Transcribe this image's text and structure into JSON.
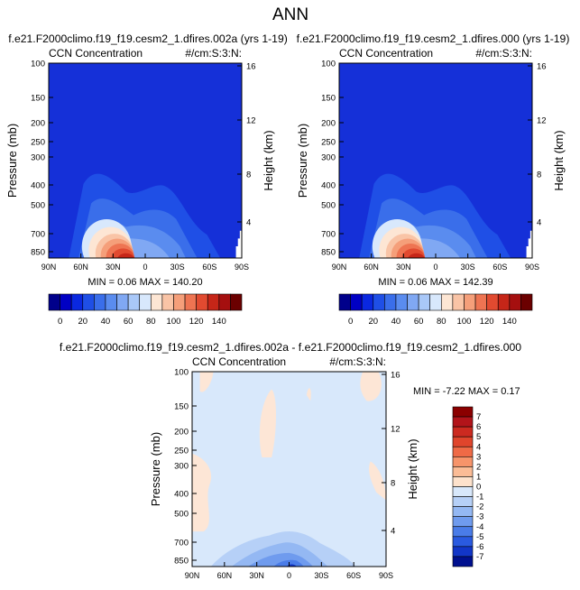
{
  "figure_title": "ANN",
  "chart_data": [
    {
      "type": "contour",
      "title": "f.e21.F2000climo.f19_f19.cesm2_1.dfires.002a (yrs 1-19)",
      "left_label": "CCN Concentration",
      "right_label": "#/cm:S:3:N:",
      "xlabel": "",
      "ylabel": "Pressure (mb)",
      "y2label": "Height (km)",
      "x_ticks": [
        "90N",
        "60N",
        "30N",
        "0",
        "30S",
        "60S",
        "90S"
      ],
      "y_ticks": [
        "100",
        "150",
        "200",
        "250",
        "300",
        "400",
        "500",
        "700",
        "850"
      ],
      "y2_ticks": [
        "16",
        "12",
        "8",
        "4"
      ],
      "stats": "MIN =  0.06  MAX = 140.20",
      "colorbar_ticks": [
        "0",
        "20",
        "40",
        "60",
        "80",
        "100",
        "120",
        "140"
      ],
      "colorbar_colors": [
        "#00008b",
        "#0000c4",
        "#0a28e0",
        "#1f4fe6",
        "#3a6eea",
        "#5a8cef",
        "#80a8f3",
        "#a9c8f8",
        "#d8e8fc",
        "#fde6d4",
        "#f9c4a6",
        "#f59f7a",
        "#ee7452",
        "#e14a30",
        "#c62618",
        "#a50f0f",
        "#6b0000"
      ],
      "ylim_mb": [
        100,
        900
      ],
      "xlim_lat": [
        90,
        -90
      ]
    },
    {
      "type": "contour",
      "title": "f.e21.F2000climo.f19_f19.cesm2_1.dfires.000 (yrs 1-19)",
      "left_label": "CCN Concentration",
      "right_label": "#/cm:S:3:N:",
      "ylabel": "Pressure (mb)",
      "y2label": "Height (km)",
      "x_ticks": [
        "90N",
        "60N",
        "30N",
        "0",
        "30S",
        "60S",
        "90S"
      ],
      "y_ticks": [
        "100",
        "150",
        "200",
        "250",
        "300",
        "400",
        "500",
        "700",
        "850"
      ],
      "y2_ticks": [
        "16",
        "12",
        "8",
        "4"
      ],
      "stats": "MIN =  0.06  MAX = 142.39",
      "colorbar_ticks": [
        "0",
        "20",
        "40",
        "60",
        "80",
        "100",
        "120",
        "140"
      ],
      "colorbar_colors": [
        "#00008b",
        "#0000c4",
        "#0a28e0",
        "#1f4fe6",
        "#3a6eea",
        "#5a8cef",
        "#80a8f3",
        "#a9c8f8",
        "#d8e8fc",
        "#fde6d4",
        "#f9c4a6",
        "#f59f7a",
        "#ee7452",
        "#e14a30",
        "#c62618",
        "#a50f0f",
        "#6b0000"
      ],
      "ylim_mb": [
        100,
        900
      ],
      "xlim_lat": [
        90,
        -90
      ]
    },
    {
      "type": "contour",
      "title": "f.e21.F2000climo.f19_f19.cesm2_1.dfires.002a - f.e21.F2000climo.f19_f19.cesm2_1.dfires.000",
      "left_label": "CCN Concentration",
      "right_label": "#/cm:S:3:N:",
      "ylabel": "Pressure (mb)",
      "y2label": "Height (km)",
      "x_ticks": [
        "90N",
        "60N",
        "30N",
        "0",
        "30S",
        "60S",
        "90S"
      ],
      "y_ticks": [
        "100",
        "150",
        "200",
        "250",
        "300",
        "400",
        "500",
        "700",
        "850"
      ],
      "y2_ticks": [
        "16",
        "12",
        "8",
        "4"
      ],
      "stats": "MIN = -7.22  MAX =  0.17",
      "colorbar_ticks": [
        "7",
        "6",
        "5",
        "4",
        "3",
        "2",
        "1",
        "0",
        "-1",
        "-2",
        "-3",
        "-4",
        "-5",
        "-6",
        "-7"
      ],
      "colorbar_colors": [
        "#8b0000",
        "#b2141a",
        "#cc2a20",
        "#e0452c",
        "#ef6a46",
        "#f7946a",
        "#fbbc96",
        "#fde2cc",
        "#d8e8fb",
        "#b6d0f7",
        "#94b8f3",
        "#6f9bee",
        "#4a7ce8",
        "#2a5ae0",
        "#1236c8",
        "#00108f"
      ],
      "ylim_mb": [
        100,
        900
      ],
      "xlim_lat": [
        90,
        -90
      ]
    }
  ]
}
